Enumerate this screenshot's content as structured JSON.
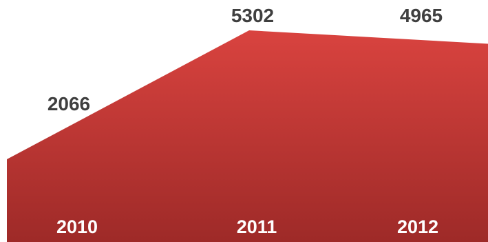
{
  "chart_data": {
    "type": "area",
    "categories": [
      "2010",
      "2011",
      "2012"
    ],
    "values": [
      2066,
      5302,
      4965
    ],
    "title": "",
    "xlabel": "",
    "ylabel": "",
    "legend": "none",
    "grid": false,
    "data_labels": [
      "2066",
      "5302",
      "4965"
    ],
    "colors": {
      "area_top": "#d9433f",
      "area_bottom": "#9e2a28",
      "data_label": "#3f3f3f",
      "category_label": "#ffffff"
    }
  }
}
